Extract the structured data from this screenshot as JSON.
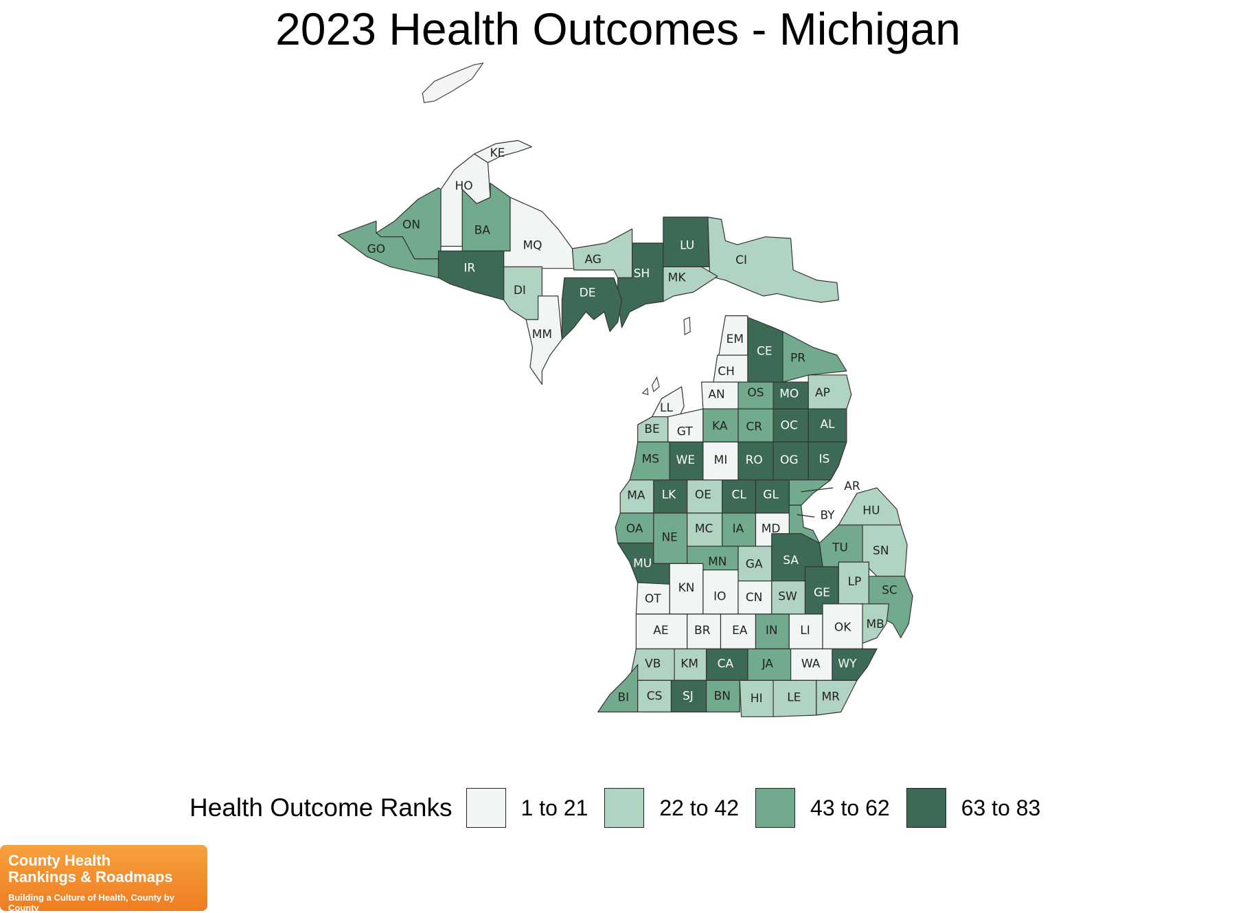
{
  "title": "2023 Health Outcomes - Michigan",
  "legend": {
    "title": "Health Outcome Ranks",
    "items": [
      {
        "label": "1 to 21",
        "color": "#f1f5f3"
      },
      {
        "label": "22 to 42",
        "color": "#b1d3c1"
      },
      {
        "label": "43 to 62",
        "color": "#72aa8e"
      },
      {
        "label": "63 to 83",
        "color": "#3c6a55"
      }
    ]
  },
  "counties": [
    {
      "abbr": "KE",
      "bin": 0
    },
    {
      "abbr": "HO",
      "bin": 0
    },
    {
      "abbr": "ON",
      "bin": 2
    },
    {
      "abbr": "BA",
      "bin": 2
    },
    {
      "abbr": "GO",
      "bin": 2
    },
    {
      "abbr": "IR",
      "bin": 3
    },
    {
      "abbr": "MQ",
      "bin": 0
    },
    {
      "abbr": "AG",
      "bin": 1
    },
    {
      "abbr": "LU",
      "bin": 3
    },
    {
      "abbr": "CI",
      "bin": 1
    },
    {
      "abbr": "SH",
      "bin": 3
    },
    {
      "abbr": "MK",
      "bin": 1
    },
    {
      "abbr": "DI",
      "bin": 1
    },
    {
      "abbr": "DE",
      "bin": 3
    },
    {
      "abbr": "MM",
      "bin": 0
    },
    {
      "abbr": "EM",
      "bin": 0
    },
    {
      "abbr": "CE",
      "bin": 3
    },
    {
      "abbr": "PR",
      "bin": 2
    },
    {
      "abbr": "CH",
      "bin": 0
    },
    {
      "abbr": "AN",
      "bin": 0
    },
    {
      "abbr": "OS",
      "bin": 2
    },
    {
      "abbr": "MO",
      "bin": 3
    },
    {
      "abbr": "AP",
      "bin": 1
    },
    {
      "abbr": "LL",
      "bin": 0
    },
    {
      "abbr": "BE",
      "bin": 1
    },
    {
      "abbr": "GT",
      "bin": 0
    },
    {
      "abbr": "KA",
      "bin": 2
    },
    {
      "abbr": "CR",
      "bin": 2
    },
    {
      "abbr": "OC",
      "bin": 3
    },
    {
      "abbr": "AL",
      "bin": 3
    },
    {
      "abbr": "MS",
      "bin": 2
    },
    {
      "abbr": "WE",
      "bin": 3
    },
    {
      "abbr": "MI",
      "bin": 0
    },
    {
      "abbr": "RO",
      "bin": 3
    },
    {
      "abbr": "OG",
      "bin": 3
    },
    {
      "abbr": "IS",
      "bin": 3
    },
    {
      "abbr": "AR",
      "bin": 2
    },
    {
      "abbr": "MA",
      "bin": 1
    },
    {
      "abbr": "LK",
      "bin": 3
    },
    {
      "abbr": "OE",
      "bin": 1
    },
    {
      "abbr": "CL",
      "bin": 3
    },
    {
      "abbr": "GL",
      "bin": 3
    },
    {
      "abbr": "BY",
      "bin": 2
    },
    {
      "abbr": "HU",
      "bin": 1
    },
    {
      "abbr": "OA",
      "bin": 2
    },
    {
      "abbr": "NE",
      "bin": 2
    },
    {
      "abbr": "MC",
      "bin": 1
    },
    {
      "abbr": "IA",
      "bin": 2
    },
    {
      "abbr": "MD",
      "bin": 0
    },
    {
      "abbr": "TU",
      "bin": 2
    },
    {
      "abbr": "SN",
      "bin": 1
    },
    {
      "abbr": "MU",
      "bin": 3
    },
    {
      "abbr": "MN",
      "bin": 2
    },
    {
      "abbr": "GA",
      "bin": 1
    },
    {
      "abbr": "SA",
      "bin": 3
    },
    {
      "abbr": "KN",
      "bin": 0
    },
    {
      "abbr": "OT",
      "bin": 0
    },
    {
      "abbr": "IO",
      "bin": 0
    },
    {
      "abbr": "CN",
      "bin": 0
    },
    {
      "abbr": "SW",
      "bin": 1
    },
    {
      "abbr": "GE",
      "bin": 3
    },
    {
      "abbr": "LP",
      "bin": 1
    },
    {
      "abbr": "SC",
      "bin": 2
    },
    {
      "abbr": "AE",
      "bin": 0
    },
    {
      "abbr": "BR",
      "bin": 0
    },
    {
      "abbr": "EA",
      "bin": 0
    },
    {
      "abbr": "IN",
      "bin": 2
    },
    {
      "abbr": "LI",
      "bin": 0
    },
    {
      "abbr": "OK",
      "bin": 0
    },
    {
      "abbr": "MB",
      "bin": 1
    },
    {
      "abbr": "VB",
      "bin": 1
    },
    {
      "abbr": "KM",
      "bin": 1
    },
    {
      "abbr": "CA",
      "bin": 3
    },
    {
      "abbr": "JA",
      "bin": 2
    },
    {
      "abbr": "WA",
      "bin": 0
    },
    {
      "abbr": "WY",
      "bin": 3
    },
    {
      "abbr": "BI",
      "bin": 2
    },
    {
      "abbr": "CS",
      "bin": 1
    },
    {
      "abbr": "SJ",
      "bin": 3
    },
    {
      "abbr": "BN",
      "bin": 2
    },
    {
      "abbr": "HI",
      "bin": 1
    },
    {
      "abbr": "LE",
      "bin": 1
    },
    {
      "abbr": "MR",
      "bin": 1
    }
  ],
  "logo": {
    "line1": "County Health",
    "line2": "Rankings & Roadmaps",
    "tagline": "Building a Culture of Health, County by County"
  }
}
